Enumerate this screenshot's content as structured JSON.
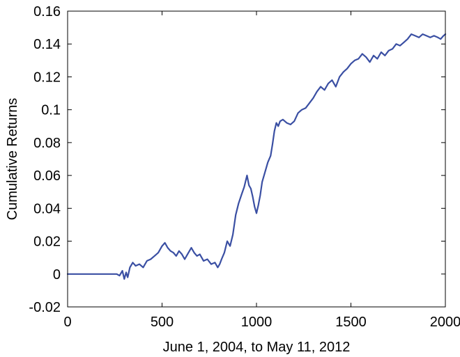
{
  "chart_data": {
    "type": "line",
    "title": "",
    "xlabel": "June 1, 2004, to May 11, 2012",
    "ylabel": "Cumulative Returns",
    "xlim": [
      0,
      2000
    ],
    "ylim": [
      -0.02,
      0.16
    ],
    "xticks": [
      0,
      500,
      1000,
      1500,
      2000
    ],
    "xtick_labels": [
      "0",
      "500",
      "1000",
      "1500",
      "2000"
    ],
    "yticks": [
      -0.02,
      0,
      0.02,
      0.04,
      0.06,
      0.08,
      0.1,
      0.12,
      0.14,
      0.16
    ],
    "ytick_labels": [
      "-0.02",
      "0",
      "0.02",
      "0.04",
      "0.06",
      "0.08",
      "0.1",
      "0.12",
      "0.14",
      "0.16"
    ],
    "grid": false,
    "line_color": "#3a4fa3",
    "series": [
      {
        "x": [
          0,
          260,
          275,
          290,
          300,
          310,
          318,
          330,
          345,
          360,
          380,
          400,
          420,
          440,
          460,
          480,
          500,
          515,
          530,
          545,
          560,
          575,
          590,
          605,
          620,
          640,
          655,
          670,
          685,
          700,
          720,
          740,
          760,
          780,
          795,
          805,
          815,
          830,
          845,
          860,
          875,
          890,
          905,
          920,
          935,
          950,
          960,
          970,
          980,
          990,
          1000,
          1010,
          1020,
          1030,
          1045,
          1060,
          1075,
          1085,
          1095,
          1105,
          1115,
          1125,
          1140,
          1160,
          1180,
          1200,
          1220,
          1240,
          1260,
          1280,
          1300,
          1320,
          1340,
          1360,
          1380,
          1400,
          1420,
          1440,
          1460,
          1480,
          1500,
          1520,
          1540,
          1560,
          1580,
          1600,
          1620,
          1640,
          1660,
          1680,
          1700,
          1720,
          1740,
          1760,
          1780,
          1800,
          1820,
          1840,
          1860,
          1880,
          1900,
          1920,
          1940,
          1960,
          1975,
          1990,
          2000
        ],
        "y": [
          0,
          0,
          -0.001,
          0.002,
          -0.003,
          0.001,
          -0.002,
          0.004,
          0.007,
          0.005,
          0.006,
          0.004,
          0.008,
          0.009,
          0.011,
          0.013,
          0.017,
          0.019,
          0.016,
          0.014,
          0.013,
          0.011,
          0.014,
          0.012,
          0.009,
          0.013,
          0.016,
          0.013,
          0.011,
          0.012,
          0.008,
          0.009,
          0.006,
          0.007,
          0.004,
          0.006,
          0.009,
          0.013,
          0.02,
          0.017,
          0.024,
          0.036,
          0.043,
          0.048,
          0.053,
          0.06,
          0.054,
          0.052,
          0.047,
          0.041,
          0.037,
          0.042,
          0.048,
          0.056,
          0.062,
          0.068,
          0.072,
          0.079,
          0.087,
          0.092,
          0.09,
          0.093,
          0.094,
          0.092,
          0.091,
          0.093,
          0.098,
          0.1,
          0.101,
          0.104,
          0.107,
          0.111,
          0.114,
          0.112,
          0.116,
          0.118,
          0.114,
          0.12,
          0.123,
          0.125,
          0.128,
          0.13,
          0.131,
          0.134,
          0.132,
          0.129,
          0.133,
          0.131,
          0.135,
          0.133,
          0.136,
          0.137,
          0.14,
          0.139,
          0.141,
          0.143,
          0.146,
          0.145,
          0.144,
          0.146,
          0.145,
          0.144,
          0.145,
          0.144,
          0.143,
          0.145,
          0.146
        ]
      }
    ]
  }
}
